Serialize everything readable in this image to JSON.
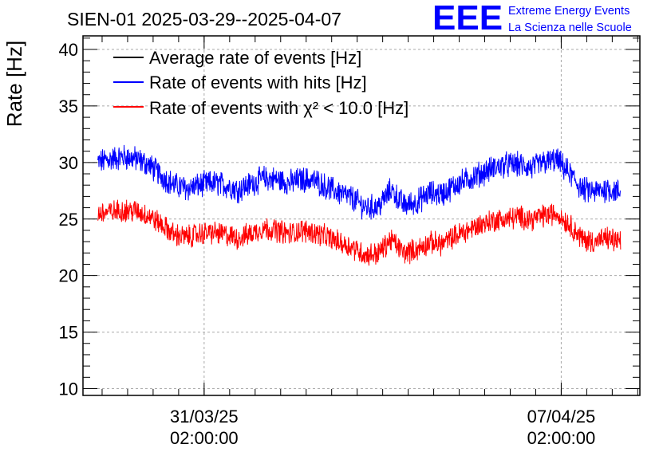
{
  "chart_data": {
    "type": "line",
    "title": "SIEN-01 2025-03-29--2025-04-07",
    "ylabel": "Rate [Hz]",
    "xlabel": "",
    "ylim": [
      9.4,
      41.2
    ],
    "yticks": [
      10,
      15,
      20,
      25,
      30,
      35,
      40
    ],
    "xlim": [
      "2025-03-28T17:00:00",
      "2025-04-08T15:00:00"
    ],
    "xticks": [
      {
        "x": "2025-03-31T02:00:00",
        "date": "31/03/25",
        "time": "02:00:00"
      },
      {
        "x": "2025-04-07T02:00:00",
        "date": "07/04/25",
        "time": "02:00:00"
      }
    ],
    "grid": true,
    "legend_position": "top-left",
    "series": [
      {
        "name": "Average rate of events [Hz]",
        "color": "#000000",
        "points": []
      },
      {
        "name": "Rate of events with hits [Hz]",
        "color": "#0000ff",
        "noise": 1.0,
        "points": [
          [
            "2025-03-29T00:00:00",
            30.0
          ],
          [
            "2025-03-29T06:00:00",
            30.3
          ],
          [
            "2025-03-29T12:00:00",
            30.5
          ],
          [
            "2025-03-29T18:00:00",
            30.3
          ],
          [
            "2025-03-30T00:00:00",
            29.8
          ],
          [
            "2025-03-30T06:00:00",
            28.8
          ],
          [
            "2025-03-30T12:00:00",
            28.0
          ],
          [
            "2025-03-30T18:00:00",
            27.7
          ],
          [
            "2025-03-31T00:00:00",
            28.0
          ],
          [
            "2025-03-31T06:00:00",
            28.2
          ],
          [
            "2025-03-31T12:00:00",
            28.0
          ],
          [
            "2025-03-31T18:00:00",
            27.6
          ],
          [
            "2025-04-01T00:00:00",
            28.1
          ],
          [
            "2025-04-01T06:00:00",
            28.6
          ],
          [
            "2025-04-01T12:00:00",
            28.5
          ],
          [
            "2025-04-01T18:00:00",
            28.2
          ],
          [
            "2025-04-02T00:00:00",
            28.5
          ],
          [
            "2025-04-02T06:00:00",
            28.4
          ],
          [
            "2025-04-02T12:00:00",
            27.8
          ],
          [
            "2025-04-02T18:00:00",
            27.3
          ],
          [
            "2025-04-03T00:00:00",
            26.8
          ],
          [
            "2025-04-03T06:00:00",
            26.0
          ],
          [
            "2025-04-03T12:00:00",
            26.1
          ],
          [
            "2025-04-03T18:00:00",
            27.6
          ],
          [
            "2025-04-04T00:00:00",
            26.2
          ],
          [
            "2025-04-04T06:00:00",
            26.5
          ],
          [
            "2025-04-04T12:00:00",
            27.3
          ],
          [
            "2025-04-04T18:00:00",
            27.2
          ],
          [
            "2025-04-05T00:00:00",
            28.0
          ],
          [
            "2025-04-05T06:00:00",
            28.5
          ],
          [
            "2025-04-05T12:00:00",
            29.0
          ],
          [
            "2025-04-05T18:00:00",
            29.5
          ],
          [
            "2025-04-06T00:00:00",
            29.8
          ],
          [
            "2025-04-06T06:00:00",
            29.8
          ],
          [
            "2025-04-06T12:00:00",
            29.5
          ],
          [
            "2025-04-06T18:00:00",
            30.0
          ],
          [
            "2025-04-07T00:00:00",
            30.2
          ],
          [
            "2025-04-07T06:00:00",
            29.0
          ],
          [
            "2025-04-07T12:00:00",
            27.6
          ],
          [
            "2025-04-07T18:00:00",
            27.4
          ],
          [
            "2025-04-08T00:00:00",
            27.7
          ],
          [
            "2025-04-08T06:00:00",
            27.3
          ]
        ]
      },
      {
        "name": "Rate of events with χ² < 10.0 [Hz]",
        "color": "#ff0000",
        "noise": 0.9,
        "points": [
          [
            "2025-03-29T00:00:00",
            25.5
          ],
          [
            "2025-03-29T06:00:00",
            25.6
          ],
          [
            "2025-03-29T12:00:00",
            25.8
          ],
          [
            "2025-03-29T18:00:00",
            25.7
          ],
          [
            "2025-03-30T00:00:00",
            25.3
          ],
          [
            "2025-03-30T06:00:00",
            24.5
          ],
          [
            "2025-03-30T12:00:00",
            23.6
          ],
          [
            "2025-03-30T18:00:00",
            23.4
          ],
          [
            "2025-03-31T00:00:00",
            23.7
          ],
          [
            "2025-03-31T06:00:00",
            23.8
          ],
          [
            "2025-03-31T12:00:00",
            23.6
          ],
          [
            "2025-03-31T18:00:00",
            23.3
          ],
          [
            "2025-04-01T00:00:00",
            23.7
          ],
          [
            "2025-04-01T06:00:00",
            24.2
          ],
          [
            "2025-04-01T12:00:00",
            24.0
          ],
          [
            "2025-04-01T18:00:00",
            23.7
          ],
          [
            "2025-04-02T00:00:00",
            24.0
          ],
          [
            "2025-04-02T06:00:00",
            23.8
          ],
          [
            "2025-04-02T12:00:00",
            23.4
          ],
          [
            "2025-04-02T18:00:00",
            22.9
          ],
          [
            "2025-04-03T00:00:00",
            22.5
          ],
          [
            "2025-04-03T06:00:00",
            21.8
          ],
          [
            "2025-04-03T12:00:00",
            22.0
          ],
          [
            "2025-04-03T18:00:00",
            23.2
          ],
          [
            "2025-04-04T00:00:00",
            22.0
          ],
          [
            "2025-04-04T06:00:00",
            22.3
          ],
          [
            "2025-04-04T12:00:00",
            22.9
          ],
          [
            "2025-04-04T18:00:00",
            22.8
          ],
          [
            "2025-04-05T00:00:00",
            23.5
          ],
          [
            "2025-04-05T06:00:00",
            24.0
          ],
          [
            "2025-04-05T12:00:00",
            24.5
          ],
          [
            "2025-04-05T18:00:00",
            24.9
          ],
          [
            "2025-04-06T00:00:00",
            25.0
          ],
          [
            "2025-04-06T06:00:00",
            25.2
          ],
          [
            "2025-04-06T12:00:00",
            25.0
          ],
          [
            "2025-04-06T18:00:00",
            25.3
          ],
          [
            "2025-04-07T00:00:00",
            25.5
          ],
          [
            "2025-04-07T06:00:00",
            24.5
          ],
          [
            "2025-04-07T12:00:00",
            23.2
          ],
          [
            "2025-04-07T18:00:00",
            23.0
          ],
          [
            "2025-04-08T00:00:00",
            23.3
          ],
          [
            "2025-04-08T06:00:00",
            22.9
          ]
        ]
      }
    ]
  },
  "logo": {
    "mark": "EEE",
    "line1": "Extreme Energy Events",
    "line2": "La Scienza nelle Scuole",
    "color": "#0000ff"
  }
}
